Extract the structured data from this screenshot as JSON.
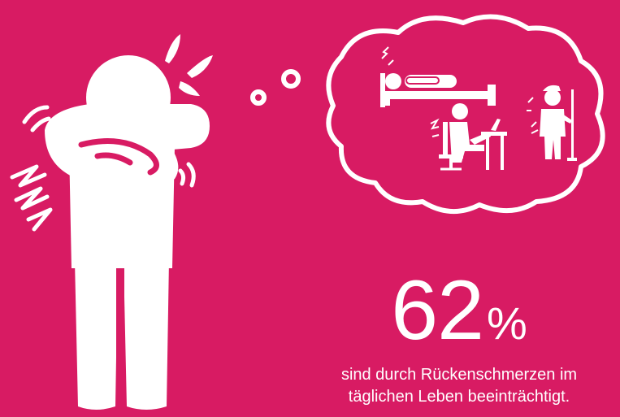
{
  "colors": {
    "background": "#d81b63",
    "foreground": "#ffffff"
  },
  "statistic": {
    "value": "62",
    "unit": "%"
  },
  "caption": {
    "line1": "sind durch Rückenschmerzen im",
    "line2": "täglichen Leben beeinträchtigt."
  },
  "icons": [
    "person-back-pain-icon",
    "thought-bubble-icon",
    "lying-in-bed-icon",
    "desk-worker-icon",
    "golfer-icon",
    "pain-spark-icon",
    "sweat-drops-icon"
  ]
}
